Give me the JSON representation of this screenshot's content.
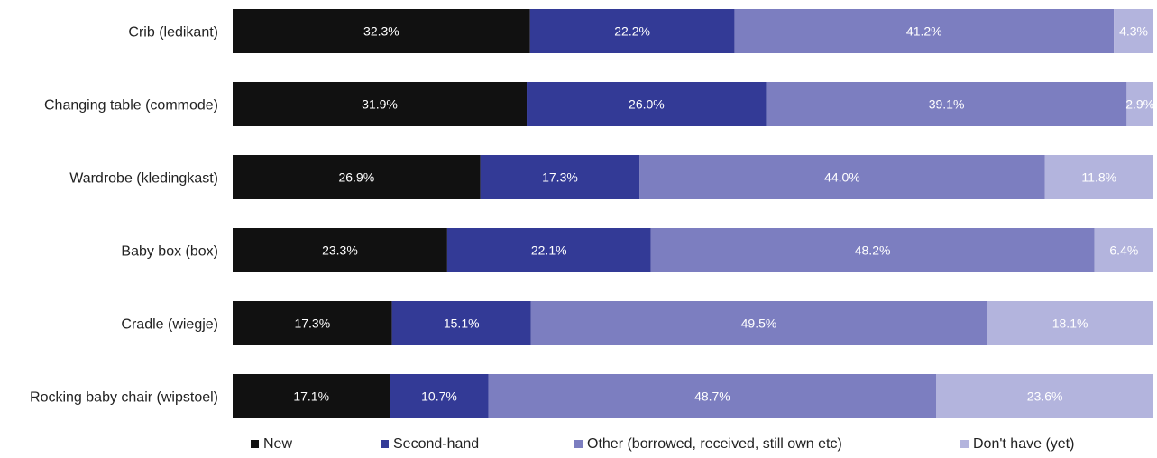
{
  "chart_data": {
    "type": "bar",
    "orientation": "horizontal",
    "stacked": true,
    "normalized_to": 100,
    "categories": [
      "Crib (ledikant)",
      "Changing table (commode)",
      "Wardrobe (kledingkast)",
      "Baby box (box)",
      "Cradle (wiegje)",
      "Rocking baby chair (wipstoel)"
    ],
    "series": [
      {
        "name": "New",
        "color": "#111111",
        "values": [
          32.3,
          31.9,
          26.9,
          23.3,
          17.3,
          17.1
        ],
        "labels": [
          "32.3%",
          "31.9%",
          "26.9%",
          "23.3%",
          "17.3%",
          "17.1%"
        ]
      },
      {
        "name": "Second-hand",
        "color": "#333a96",
        "values": [
          22.2,
          26.0,
          17.3,
          22.1,
          15.1,
          10.7
        ],
        "labels": [
          "22.2%",
          "26.0%",
          "17.3%",
          "22.1%",
          "15.1%",
          "10.7%"
        ]
      },
      {
        "name": "Other (borrowed, received, still own etc)",
        "color": "#7c7ec0",
        "values": [
          41.2,
          39.1,
          44.0,
          48.2,
          49.5,
          48.7
        ],
        "labels": [
          "41.2%",
          "39.1%",
          "44.0%",
          "48.2%",
          "49.5%",
          "48.7%"
        ]
      },
      {
        "name": "Don't have (yet)",
        "color": "#b3b4dd",
        "values": [
          4.3,
          2.9,
          11.8,
          6.4,
          18.1,
          23.6
        ],
        "labels": [
          "4.3%",
          "2.9%",
          "11.8%",
          "6.4%",
          "18.1%",
          "23.6%"
        ]
      }
    ],
    "legend_position": "bottom",
    "grid": false,
    "data_labels": true
  }
}
